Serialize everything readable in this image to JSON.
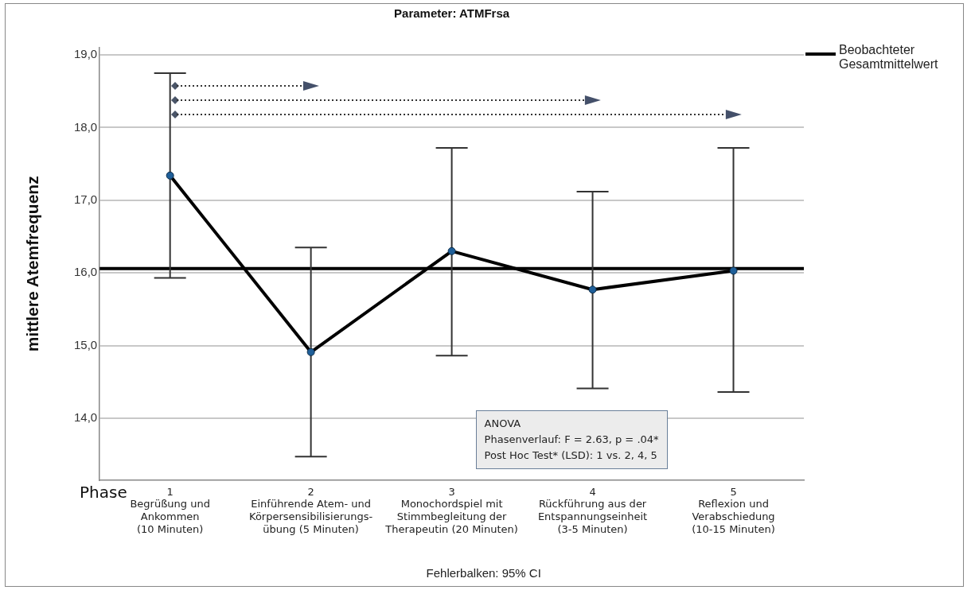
{
  "chart_data": {
    "type": "line",
    "title": "Parameter: ATMFrsa",
    "xlabel": "Phase",
    "ylabel": "mittlere Atemfrequenz",
    "categories": [
      "1\nBegrüßung und\nAnkommen\n(10 Minuten)",
      "2\nEinführende Atem- und\nKörpersensibilisierungs-\nübung (5 Minuten)",
      "3\nMonochordspiel mit\nStimmbegleitung der\nTherapeutin (20 Minuten)",
      "4\nRückführung aus der\nEntspannungseinheit\n(3-5 Minuten)",
      "5\nReflexion und\nVerabschiedung\n(10-15 Minuten)"
    ],
    "series": [
      {
        "color": "#000000",
        "values": [
          17.34,
          14.91,
          16.3,
          15.77,
          16.03
        ],
        "errors": [
          [
            15.93,
            18.75
          ],
          [
            13.47,
            16.35
          ],
          [
            14.86,
            17.72
          ],
          [
            14.41,
            17.12
          ],
          [
            14.36,
            17.72
          ]
        ]
      }
    ],
    "marker": "circle",
    "grid": "y",
    "legend": "top right",
    "ylim": [
      13.15,
      19.1
    ],
    "yticks": [
      {
        "value": 14,
        "label": "14,0"
      },
      {
        "value": 15,
        "label": "15,0"
      },
      {
        "value": 16,
        "label": "16,0"
      },
      {
        "value": 17,
        "label": "17,0"
      },
      {
        "value": 18,
        "label": "18,0"
      },
      {
        "value": 19,
        "label": "19,0"
      }
    ],
    "ref_lines": [
      {
        "axis": "y",
        "value": 16.06,
        "label": "Beobachteter Gesamtmittelwert",
        "color": "#000000"
      }
    ],
    "annotations": [
      "ANOVA\nPhasenverlauf: F = 2.63, p = .04*\nPost Hoc Test* (LSD): 1 vs. 2, 4, 5",
      "Fehlerbalken: 95% CI"
    ]
  }
}
